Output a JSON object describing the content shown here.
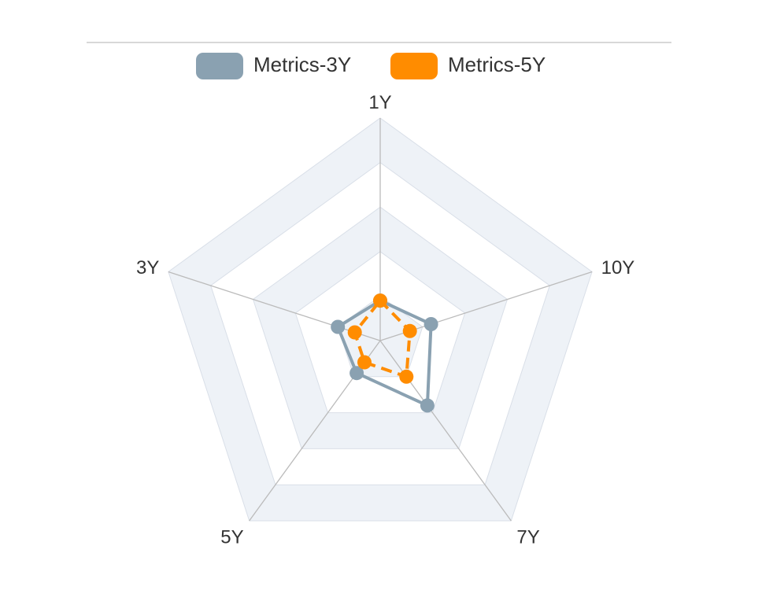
{
  "chart_data": {
    "type": "radar",
    "indicators": [
      "1Y",
      "10Y",
      "7Y",
      "5Y",
      "3Y"
    ],
    "max": 5,
    "series": [
      {
        "name": "Metrics-3Y",
        "values": [
          0.9,
          1.2,
          1.8,
          0.9,
          1.0
        ],
        "color": "#8aa1b1",
        "line_style": "solid"
      },
      {
        "name": "Metrics-5Y",
        "values": [
          0.9,
          0.7,
          1.0,
          0.6,
          0.6
        ],
        "color": "#ff8c00",
        "line_style": "dashed"
      }
    ],
    "legend_position": "top-center",
    "split_number": 5,
    "split_area_colors": [
      "#ffffff",
      "#eef2f7"
    ]
  }
}
